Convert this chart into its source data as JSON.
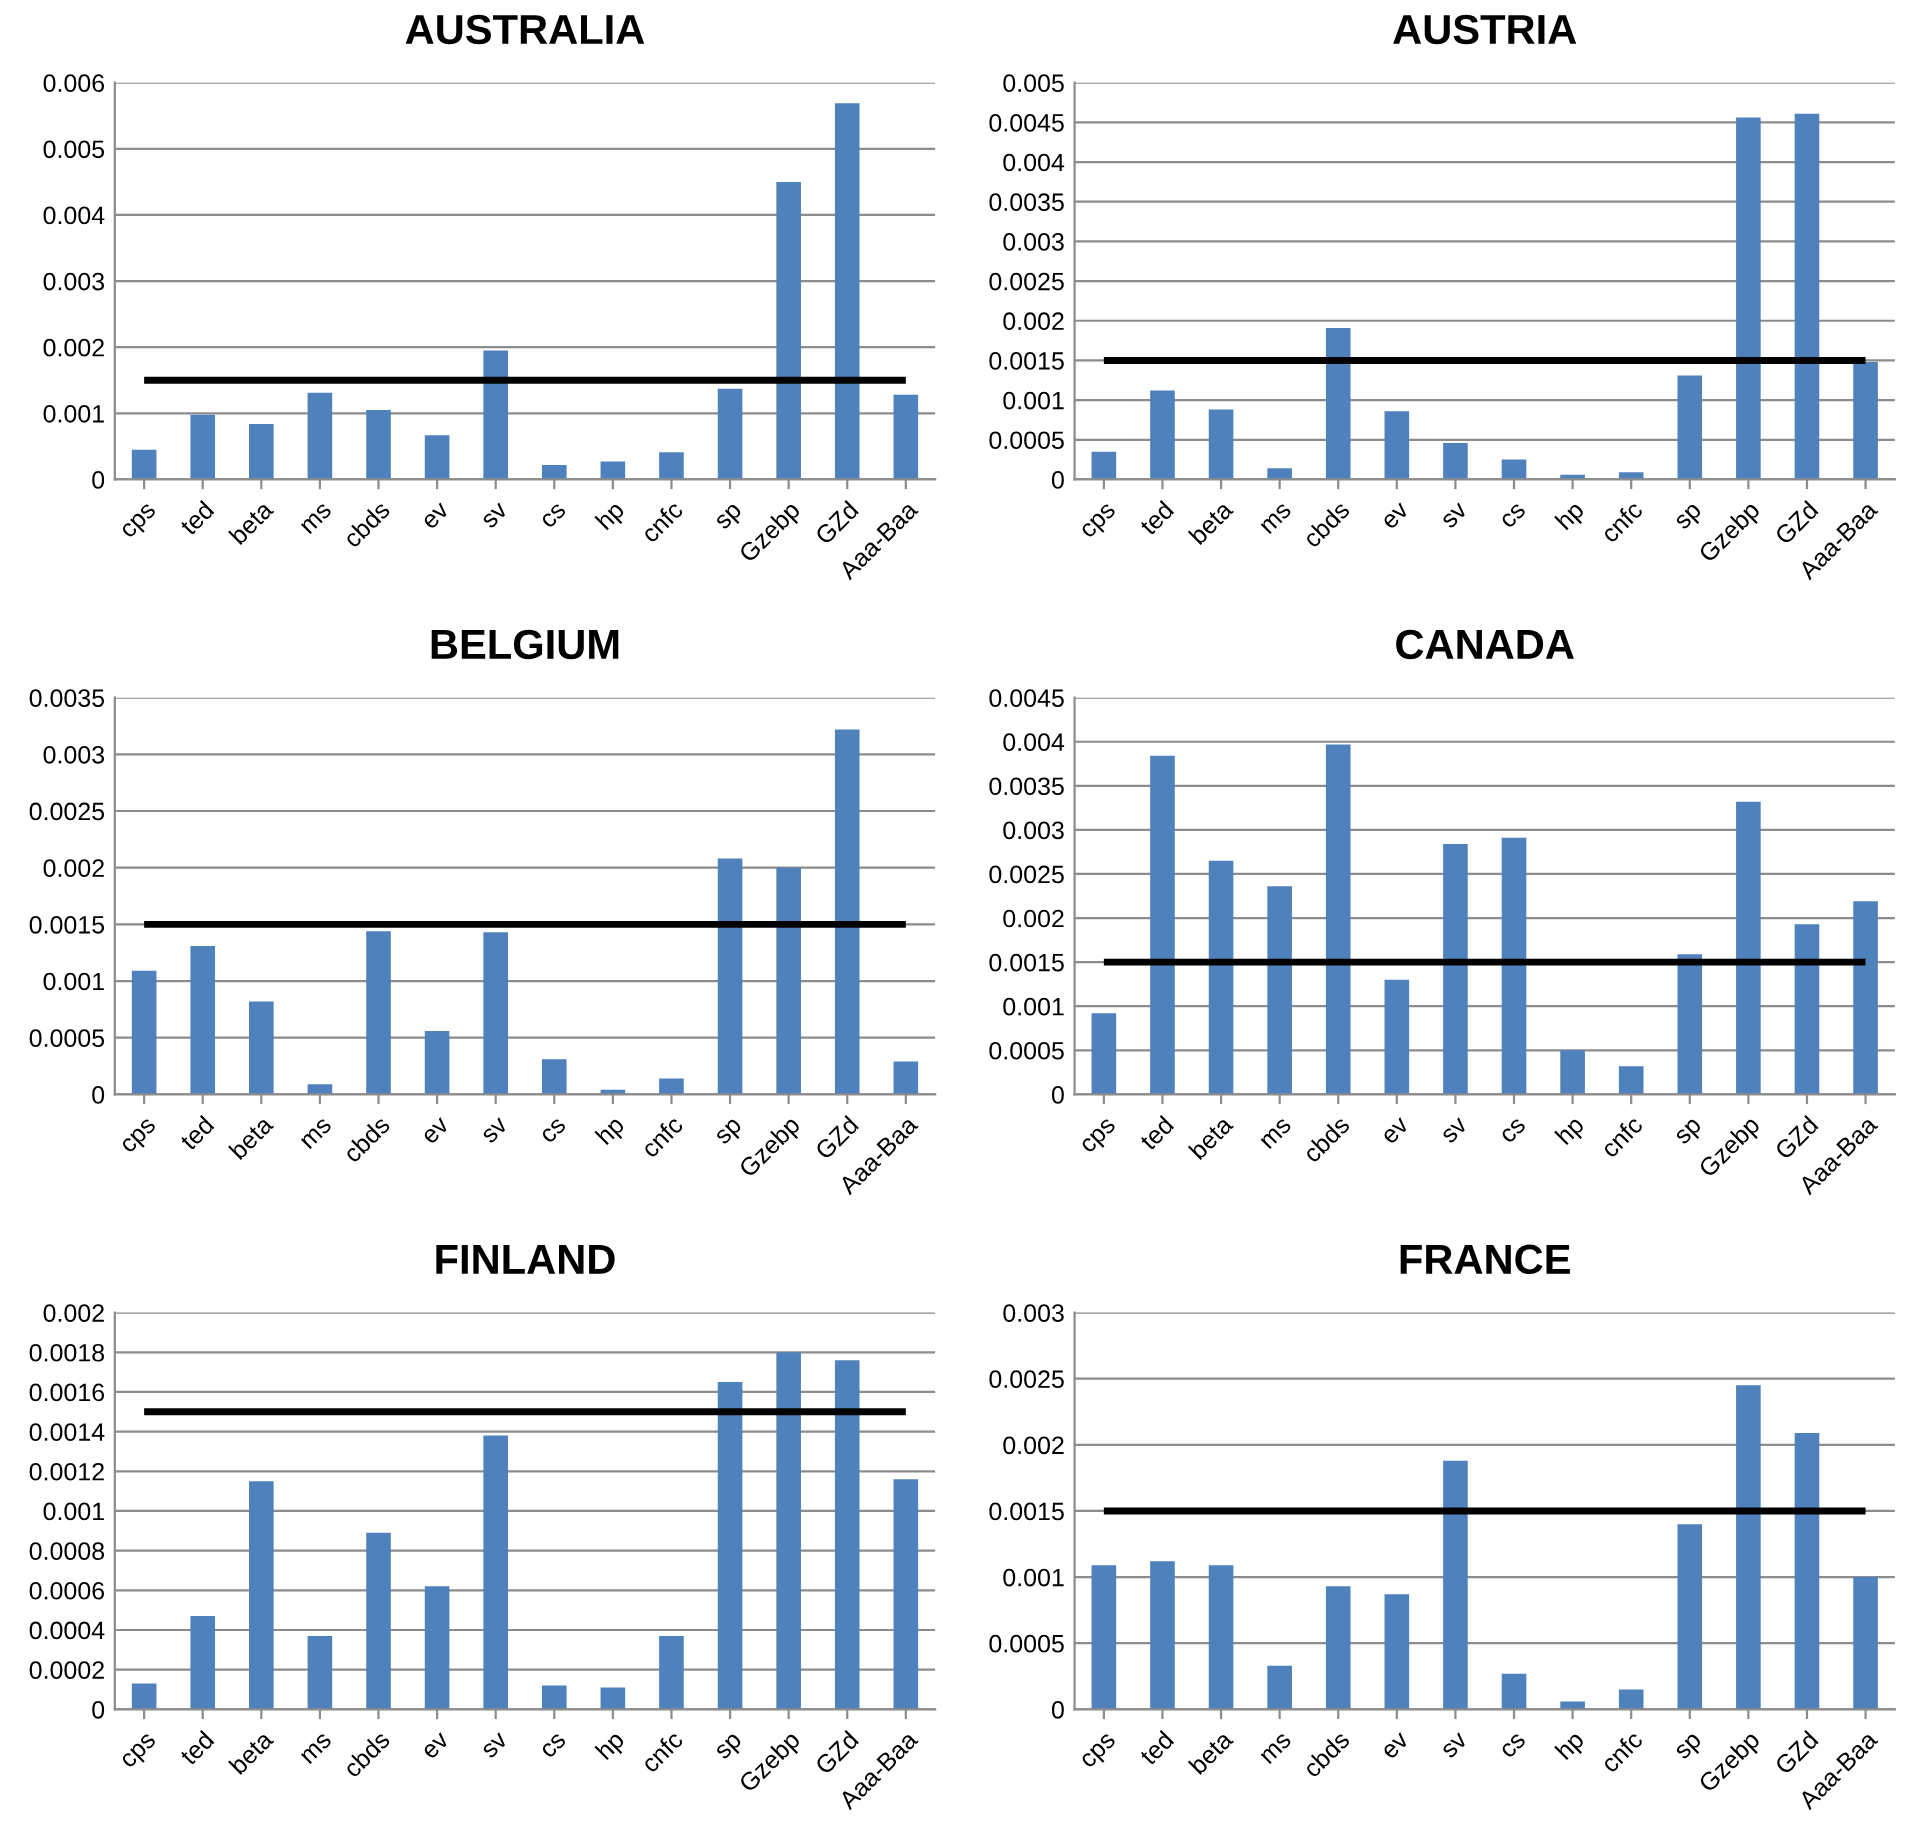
{
  "chart_data": [
    {
      "type": "bar",
      "title": "AUSTRALIA",
      "categories": [
        "cps",
        "ted",
        "beta",
        "ms",
        "cbds",
        "ev",
        "sv",
        "cs",
        "hp",
        "cnfc",
        "sp",
        "Gzebp",
        "GZd",
        "Aaa-Baa"
      ],
      "values": [
        0.00045,
        0.00098,
        0.00084,
        0.00131,
        0.00105,
        0.00067,
        0.00195,
        0.00022,
        0.00027,
        0.00041,
        0.00137,
        0.0045,
        0.00569,
        0.00128
      ],
      "color": "#4f81bd",
      "ylim": [
        0,
        0.006
      ],
      "yticks": [
        0,
        0.001,
        0.002,
        0.003,
        0.004,
        0.005,
        0.006
      ],
      "grid": "y",
      "ref_lines": [
        {
          "axis": "y",
          "value": 0.0015,
          "color": "#000000"
        }
      ]
    },
    {
      "type": "bar",
      "title": "AUSTRIA",
      "categories": [
        "cps",
        "ted",
        "beta",
        "ms",
        "cbds",
        "ev",
        "sv",
        "cs",
        "hp",
        "cnfc",
        "sp",
        "Gzebp",
        "GZd",
        "Aaa-Baa"
      ],
      "values": [
        0.00035,
        0.00112,
        0.00088,
        0.00014,
        0.00191,
        0.00086,
        0.00046,
        0.00025,
        6e-05,
        9e-05,
        0.00131,
        0.00456,
        0.00461,
        0.00148
      ],
      "color": "#4f81bd",
      "ylim": [
        0,
        0.005
      ],
      "yticks": [
        0,
        0.0005,
        0.001,
        0.0015,
        0.002,
        0.0025,
        0.003,
        0.0035,
        0.004,
        0.0045,
        0.005
      ],
      "grid": "y",
      "ref_lines": [
        {
          "axis": "y",
          "value": 0.0015,
          "color": "#000000"
        }
      ]
    },
    {
      "type": "bar",
      "title": "BELGIUM",
      "categories": [
        "cps",
        "ted",
        "beta",
        "ms",
        "cbds",
        "ev",
        "sv",
        "cs",
        "hp",
        "cnfc",
        "sp",
        "Gzebp",
        "GZd",
        "Aaa-Baa"
      ],
      "values": [
        0.00109,
        0.00131,
        0.00082,
        9e-05,
        0.00144,
        0.00056,
        0.00143,
        0.00031,
        4e-05,
        0.00014,
        0.00208,
        0.002,
        0.00322,
        0.00029
      ],
      "color": "#4f81bd",
      "ylim": [
        0,
        0.0035
      ],
      "yticks": [
        0,
        0.0005,
        0.001,
        0.0015,
        0.002,
        0.0025,
        0.003,
        0.0035
      ],
      "grid": "y",
      "ref_lines": [
        {
          "axis": "y",
          "value": 0.0015,
          "color": "#000000"
        }
      ]
    },
    {
      "type": "bar",
      "title": "CANADA",
      "categories": [
        "cps",
        "ted",
        "beta",
        "ms",
        "cbds",
        "ev",
        "sv",
        "cs",
        "hp",
        "cnfc",
        "sp",
        "Gzebp",
        "GZd",
        "Aaa-Baa"
      ],
      "values": [
        0.00092,
        0.00384,
        0.00265,
        0.00236,
        0.00397,
        0.0013,
        0.00284,
        0.00291,
        0.0005,
        0.00032,
        0.00159,
        0.00332,
        0.00193,
        0.00219
      ],
      "color": "#4f81bd",
      "ylim": [
        0,
        0.0045
      ],
      "yticks": [
        0,
        0.0005,
        0.001,
        0.0015,
        0.002,
        0.0025,
        0.003,
        0.0035,
        0.004,
        0.0045
      ],
      "grid": "y",
      "ref_lines": [
        {
          "axis": "y",
          "value": 0.0015,
          "color": "#000000"
        }
      ]
    },
    {
      "type": "bar",
      "title": "FINLAND",
      "categories": [
        "cps",
        "ted",
        "beta",
        "ms",
        "cbds",
        "ev",
        "sv",
        "cs",
        "hp",
        "cnfc",
        "sp",
        "Gzebp",
        "GZd",
        "Aaa-Baa"
      ],
      "values": [
        0.00013,
        0.00047,
        0.00115,
        0.00037,
        0.00089,
        0.00062,
        0.00138,
        0.00012,
        0.00011,
        0.00037,
        0.00165,
        0.0018,
        0.00176,
        0.00116
      ],
      "color": "#4f81bd",
      "ylim": [
        0,
        0.002
      ],
      "yticks": [
        0,
        0.0002,
        0.0004,
        0.0006,
        0.0008,
        0.001,
        0.0012,
        0.0014,
        0.0016,
        0.0018,
        0.002
      ],
      "grid": "y",
      "ref_lines": [
        {
          "axis": "y",
          "value": 0.0015,
          "color": "#000000"
        }
      ]
    },
    {
      "type": "bar",
      "title": "FRANCE",
      "categories": [
        "cps",
        "ted",
        "beta",
        "ms",
        "cbds",
        "ev",
        "sv",
        "cs",
        "hp",
        "cnfc",
        "sp",
        "Gzebp",
        "GZd",
        "Aaa-Baa"
      ],
      "values": [
        0.00109,
        0.00112,
        0.00109,
        0.00033,
        0.00093,
        0.00087,
        0.00188,
        0.00027,
        6e-05,
        0.00015,
        0.0014,
        0.00245,
        0.00209,
        0.001
      ],
      "color": "#4f81bd",
      "ylim": [
        0,
        0.003
      ],
      "yticks": [
        0,
        0.0005,
        0.001,
        0.0015,
        0.002,
        0.0025,
        0.003
      ],
      "grid": "y",
      "ref_lines": [
        {
          "axis": "y",
          "value": 0.0015,
          "color": "#000000"
        }
      ]
    }
  ]
}
